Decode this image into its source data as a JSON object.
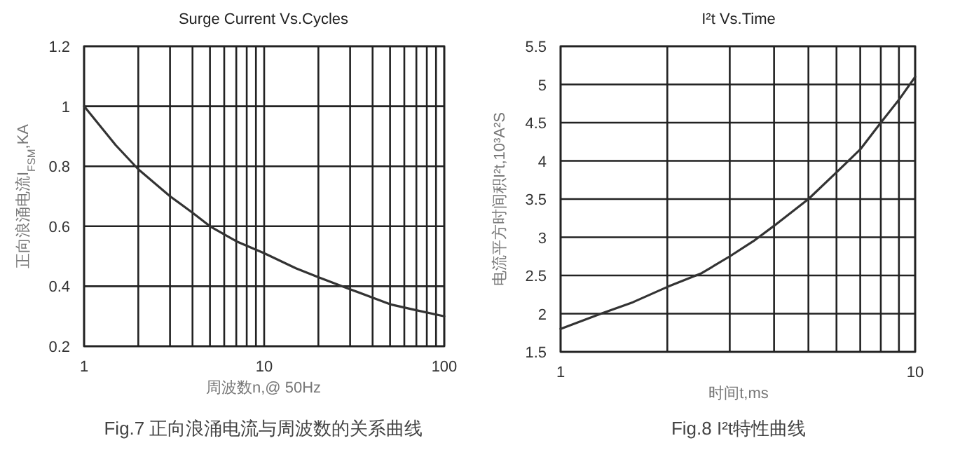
{
  "chart_data": [
    {
      "type": "line",
      "title": "Surge Current Vs.Cycles",
      "xlabel": "周波数n,@ 50Hz",
      "ylabel": "正向浪涌电流I$_{FSM}$,KA",
      "annotations": [
        "Fig.7 正向浪涌电流与周波数的关系曲线"
      ],
      "log": "x",
      "grid": true,
      "x": [
        1,
        1.5,
        2,
        3,
        4,
        5,
        7,
        10,
        15,
        20,
        30,
        50,
        70,
        100
      ],
      "series": [
        {
          "color": "#333333",
          "values": [
            1.0,
            0.87,
            0.79,
            0.7,
            0.645,
            0.6,
            0.55,
            0.51,
            0.46,
            0.43,
            0.39,
            0.34,
            0.32,
            0.3
          ]
        }
      ],
      "xlim": [
        1,
        100
      ],
      "ylim": [
        0.2,
        1.2
      ],
      "xticks": [
        1,
        {
          "value": 2,
          "label": null
        },
        {
          "value": 3,
          "label": null
        },
        {
          "value": 4,
          "label": null
        },
        {
          "value": 5,
          "label": null
        },
        {
          "value": 6,
          "label": null
        },
        {
          "value": 7,
          "label": null
        },
        {
          "value": 8,
          "label": null
        },
        {
          "value": 9,
          "label": null
        },
        10,
        {
          "value": 20,
          "label": null
        },
        {
          "value": 30,
          "label": null
        },
        {
          "value": 40,
          "label": null
        },
        {
          "value": 50,
          "label": null
        },
        {
          "value": 60,
          "label": null
        },
        {
          "value": 70,
          "label": null
        },
        {
          "value": 80,
          "label": null
        },
        {
          "value": 90,
          "label": null
        },
        100
      ],
      "yticks": [
        0.2,
        0.4,
        0.6,
        0.8,
        1,
        1.2
      ]
    },
    {
      "type": "line",
      "title": "I²t  Vs.Time",
      "xlabel": "时间t,ms",
      "ylabel": "电流平方时间积I²t,10³A²S",
      "annotations": [
        "Fig.8 I²t特性曲线"
      ],
      "log": "x",
      "grid": true,
      "x": [
        1,
        1.3,
        1.6,
        2,
        2.5,
        3,
        3.5,
        4,
        5,
        6,
        7,
        8,
        9,
        10
      ],
      "series": [
        {
          "color": "#333333",
          "values": [
            1.8,
            2.0,
            2.15,
            2.35,
            2.53,
            2.75,
            2.95,
            3.15,
            3.5,
            3.85,
            4.15,
            4.5,
            4.8,
            5.1
          ]
        }
      ],
      "xlim": [
        1,
        10
      ],
      "ylim": [
        1.5,
        5.5
      ],
      "xticks": [
        1,
        {
          "value": 2,
          "label": null
        },
        {
          "value": 3,
          "label": null
        },
        {
          "value": 4,
          "label": null
        },
        {
          "value": 5,
          "label": null
        },
        {
          "value": 6,
          "label": null
        },
        {
          "value": 7,
          "label": null
        },
        {
          "value": 8,
          "label": null
        },
        {
          "value": 9,
          "label": null
        },
        10
      ],
      "yticks": [
        1.5,
        2,
        2.5,
        3,
        3.5,
        4,
        4.5,
        5,
        5.5
      ]
    }
  ]
}
